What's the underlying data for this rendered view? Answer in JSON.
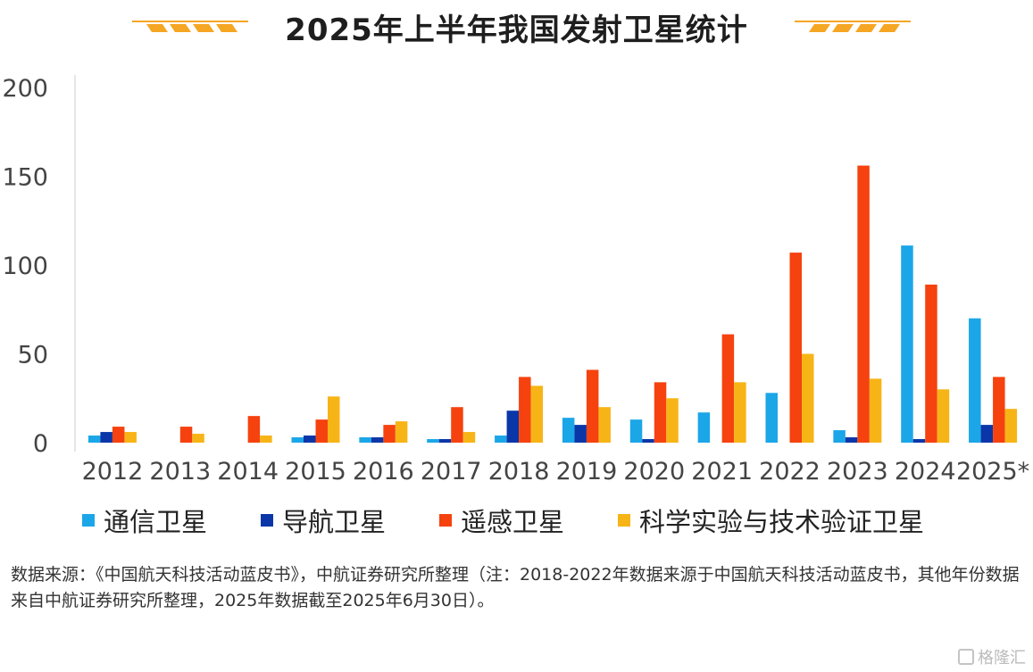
{
  "title": "2025年上半年我国发射卫星统计",
  "colors": {
    "通信卫星": "#1ba6e8",
    "导航卫星": "#0a36a8",
    "遥感卫星": "#f5420f",
    "科学实验与技术验证卫星": "#f7b416",
    "decoration": "#f5a623",
    "axis": "#cccccc"
  },
  "chart_data": {
    "type": "bar",
    "title": "2025年上半年我国发射卫星统计",
    "categories": [
      "2012",
      "2013",
      "2014",
      "2015",
      "2016",
      "2017",
      "2018",
      "2019",
      "2020",
      "2021",
      "2022",
      "2023",
      "2024",
      "2025*"
    ],
    "ylim": [
      0,
      200
    ],
    "yticks": [
      "0",
      "50",
      "100",
      "150",
      "200"
    ],
    "grid": false,
    "legend": "bottom",
    "series": [
      {
        "name": "通信卫星",
        "values": [
          4,
          0,
          0,
          3,
          3,
          2,
          4,
          14,
          13,
          17,
          28,
          7,
          111,
          70
        ]
      },
      {
        "name": "导航卫星",
        "values": [
          6,
          0,
          0,
          4,
          3,
          2,
          18,
          10,
          2,
          0,
          0,
          3,
          2,
          10
        ]
      },
      {
        "name": "遥感卫星",
        "values": [
          9,
          9,
          15,
          13,
          10,
          20,
          37,
          41,
          34,
          61,
          107,
          156,
          89,
          37
        ]
      },
      {
        "name": "科学实验与技术验证卫星",
        "values": [
          6,
          5,
          4,
          26,
          12,
          6,
          32,
          20,
          25,
          34,
          50,
          36,
          30,
          19
        ]
      }
    ]
  },
  "source": "数据来源：《中国航天科技活动蓝皮书》，中航证券研究所整理（注：2018-2022年数据来源于中国航天科技活动蓝皮书，其他年份数据来自中航证券研究所整理，2025年数据截至2025年6月30日）。",
  "watermark": "格隆汇"
}
